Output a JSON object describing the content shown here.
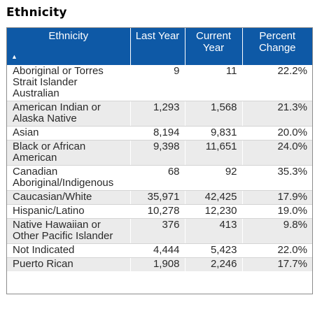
{
  "title": "Ethnicity",
  "table": {
    "headers": {
      "ethnicity": "Ethnicity",
      "last_year": "Last Year",
      "current_year": "Current Year",
      "percent_change": "Percent Change"
    },
    "sort": {
      "column": "ethnicity",
      "direction": "ascending",
      "icon": "sort-ascending-icon"
    },
    "rows": [
      {
        "ethnicity": "Aboriginal or Torres Strait Islander Australian",
        "last_year": "9",
        "current_year": "11",
        "percent_change": "22.2%"
      },
      {
        "ethnicity": "American Indian or Alaska Native",
        "last_year": "1,293",
        "current_year": "1,568",
        "percent_change": "21.3%"
      },
      {
        "ethnicity": "Asian",
        "last_year": "8,194",
        "current_year": "9,831",
        "percent_change": "20.0%"
      },
      {
        "ethnicity": "Black or African American",
        "last_year": "9,398",
        "current_year": "11,651",
        "percent_change": "24.0%"
      },
      {
        "ethnicity": "Canadian Aboriginal/Indigenous",
        "last_year": "68",
        "current_year": "92",
        "percent_change": "35.3%"
      },
      {
        "ethnicity": "Caucasian/White",
        "last_year": "35,971",
        "current_year": "42,425",
        "percent_change": "17.9%"
      },
      {
        "ethnicity": "Hispanic/Latino",
        "last_year": "10,278",
        "current_year": "12,230",
        "percent_change": "19.0%"
      },
      {
        "ethnicity": "Native Hawaiian or Other Pacific Islander",
        "last_year": "376",
        "current_year": "413",
        "percent_change": "9.8%"
      },
      {
        "ethnicity": "Not Indicated",
        "last_year": "4,444",
        "current_year": "5,423",
        "percent_change": "22.0%"
      },
      {
        "ethnicity": "Puerto Rican",
        "last_year": "1,908",
        "current_year": "2,246",
        "percent_change": "17.7%"
      }
    ]
  },
  "colors": {
    "header_bg": "#0e59a6",
    "header_text": "#ffffff",
    "row_alt_bg": "#ebebeb"
  }
}
